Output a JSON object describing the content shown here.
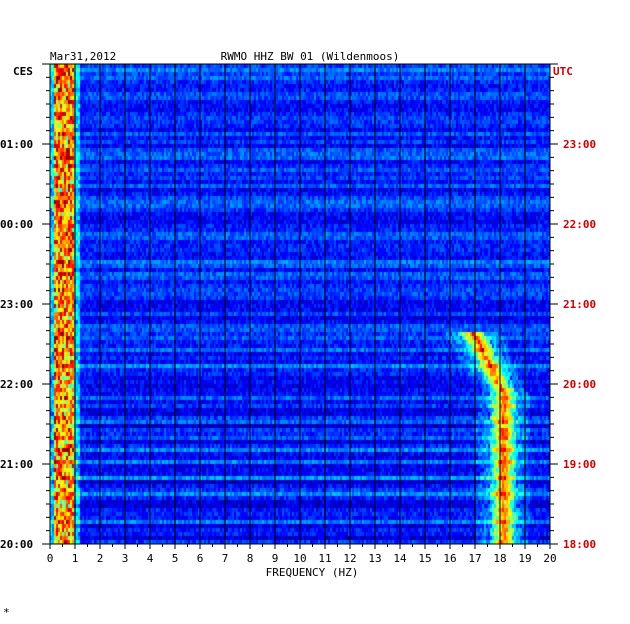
{
  "header": {
    "date": "Mar31,2012",
    "station": "RWMO HHZ BW 01 (Wildenmoos)"
  },
  "axes": {
    "left_zone": "CES",
    "right_zone": "UTC",
    "xlabel": "FREQUENCY (HZ)",
    "footnote": "*"
  },
  "colors": {
    "background": "#ffffff",
    "spectro_base": "#0a1fb0",
    "left_time_labels": "#000000",
    "right_time_labels": "#cc0000",
    "grid": "#000000"
  },
  "chart_data": {
    "type": "heatmap",
    "title": "RWMO HHZ BW 01 (Wildenmoos)",
    "date": "Mar31,2012",
    "xlabel": "FREQUENCY (HZ)",
    "xlim": [
      0,
      20
    ],
    "x_ticks": [
      0,
      1,
      2,
      3,
      4,
      5,
      6,
      7,
      8,
      9,
      10,
      11,
      12,
      13,
      14,
      15,
      16,
      17,
      18,
      19,
      20
    ],
    "left_time_ticks": [
      "01:00",
      "00:00",
      "23:00",
      "22:00",
      "21:00",
      "20:00"
    ],
    "right_time_ticks": [
      "23:00",
      "22:00",
      "21:00",
      "20:00",
      "19:00",
      "18:00"
    ],
    "left_axis_unit": "CES",
    "right_axis_unit": "UTC",
    "colormap": "jet",
    "features": [
      {
        "name": "low-frequency band",
        "freq_hz": [
          0.1,
          0.9
        ],
        "time_utc": [
          "18:00",
          "24:00"
        ]
      },
      {
        "name": "high-frequency tremor",
        "freq_hz": [
          16.5,
          19.0
        ],
        "time_utc": [
          "18:00",
          "20:40"
        ]
      }
    ]
  }
}
